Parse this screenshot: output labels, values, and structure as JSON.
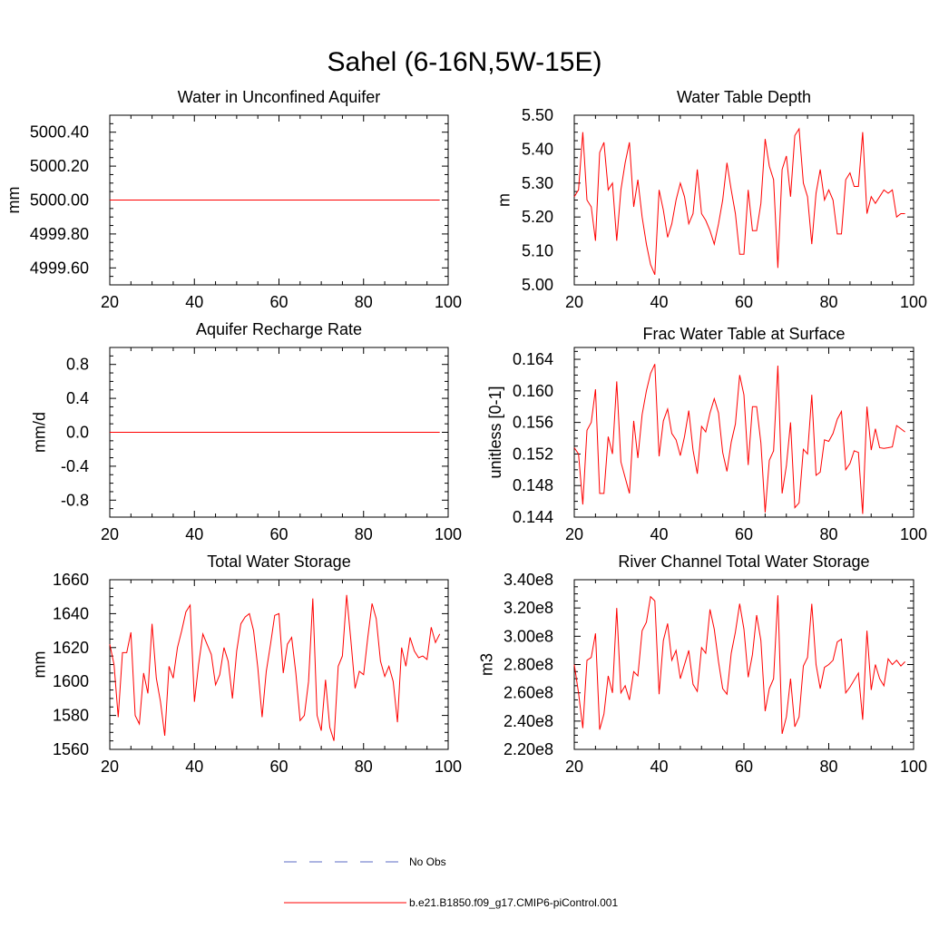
{
  "figure": {
    "title": "Sahel (6-16N,5W-15E)"
  },
  "colors": {
    "model_line": "#ff0000",
    "obs_line": "#5b6bc4",
    "axis": "#000000"
  },
  "legend": {
    "obs_label": "No Obs",
    "model_label": "b.e21.B1850.f09_g17.CMIP6-piControl.001"
  },
  "chart_data": [
    {
      "type": "line",
      "title": "Water in Unconfined Aquifer",
      "ylabel": "mm",
      "xlabel": "",
      "xlim": [
        20,
        100
      ],
      "ylim": [
        4999.5,
        5000.5
      ],
      "xticks": [
        20,
        40,
        60,
        80,
        100
      ],
      "yticks": [
        4999.6,
        4999.8,
        5000.0,
        5000.2,
        5000.4
      ],
      "ytick_labels": [
        "4999.60",
        "4999.80",
        "5000.00",
        "5000.20",
        "5000.40"
      ],
      "series": [
        {
          "name": "b.e21.B1850.f09_g17.CMIP6-piControl.001",
          "x_start": 20,
          "x_step": 1,
          "values": [
            5000,
            5000,
            5000,
            5000,
            5000,
            5000,
            5000,
            5000,
            5000,
            5000,
            5000,
            5000,
            5000,
            5000,
            5000,
            5000,
            5000,
            5000,
            5000,
            5000,
            5000,
            5000,
            5000,
            5000,
            5000,
            5000,
            5000,
            5000,
            5000,
            5000,
            5000,
            5000,
            5000,
            5000,
            5000,
            5000,
            5000,
            5000,
            5000,
            5000,
            5000,
            5000,
            5000,
            5000,
            5000,
            5000,
            5000,
            5000,
            5000,
            5000,
            5000,
            5000,
            5000,
            5000,
            5000,
            5000,
            5000,
            5000,
            5000,
            5000,
            5000,
            5000,
            5000,
            5000,
            5000,
            5000,
            5000,
            5000,
            5000,
            5000,
            5000,
            5000,
            5000,
            5000,
            5000,
            5000,
            5000,
            5000,
            5000
          ]
        }
      ]
    },
    {
      "type": "line",
      "title": "Water Table Depth",
      "ylabel": "m",
      "xlabel": "",
      "xlim": [
        20,
        100
      ],
      "ylim": [
        5.0,
        5.5
      ],
      "xticks": [
        20,
        40,
        60,
        80,
        100
      ],
      "yticks": [
        5.0,
        5.1,
        5.2,
        5.3,
        5.4,
        5.5
      ],
      "ytick_labels": [
        "5.00",
        "5.10",
        "5.20",
        "5.30",
        "5.40",
        "5.50"
      ],
      "series": [
        {
          "name": "b.e21.B1850.f09_g17.CMIP6-piControl.001",
          "x_start": 20,
          "x_step": 1,
          "values": [
            5.26,
            5.28,
            5.45,
            5.25,
            5.23,
            5.13,
            5.39,
            5.42,
            5.28,
            5.3,
            5.13,
            5.28,
            5.36,
            5.42,
            5.23,
            5.31,
            5.2,
            5.12,
            5.06,
            5.03,
            5.28,
            5.22,
            5.14,
            5.18,
            5.25,
            5.3,
            5.26,
            5.18,
            5.21,
            5.34,
            5.21,
            5.19,
            5.16,
            5.12,
            5.18,
            5.25,
            5.36,
            5.28,
            5.21,
            5.09,
            5.09,
            5.28,
            5.16,
            5.16,
            5.24,
            5.43,
            5.35,
            5.31,
            5.05,
            5.34,
            5.38,
            5.26,
            5.44,
            5.46,
            5.3,
            5.26,
            5.12,
            5.27,
            5.34,
            5.25,
            5.28,
            5.25,
            5.15,
            5.15,
            5.31,
            5.33,
            5.29,
            5.29,
            5.45,
            5.21,
            5.26,
            5.24,
            5.26,
            5.28,
            5.27,
            5.28,
            5.2,
            5.21,
            5.21
          ]
        }
      ]
    },
    {
      "type": "line",
      "title": "Aquifer Recharge Rate",
      "ylabel": "mm/d",
      "xlabel": "",
      "xlim": [
        20,
        100
      ],
      "ylim": [
        -1.0,
        1.0
      ],
      "xticks": [
        20,
        40,
        60,
        80,
        100
      ],
      "yticks": [
        -0.8,
        -0.4,
        0.0,
        0.4,
        0.8
      ],
      "ytick_labels": [
        "-0.8",
        "-0.4",
        "0.0",
        "0.4",
        "0.8"
      ],
      "series": [
        {
          "name": "b.e21.B1850.f09_g17.CMIP6-piControl.001",
          "x_start": 20,
          "x_step": 1,
          "values": [
            0,
            0,
            0,
            0,
            0,
            0,
            0,
            0,
            0,
            0,
            0,
            0,
            0,
            0,
            0,
            0,
            0,
            0,
            0,
            0,
            0,
            0,
            0,
            0,
            0,
            0,
            0,
            0,
            0,
            0,
            0,
            0,
            0,
            0,
            0,
            0,
            0,
            0,
            0,
            0,
            0,
            0,
            0,
            0,
            0,
            0,
            0,
            0,
            0,
            0,
            0,
            0,
            0,
            0,
            0,
            0,
            0,
            0,
            0,
            0,
            0,
            0,
            0,
            0,
            0,
            0,
            0,
            0,
            0,
            0,
            0,
            0,
            0,
            0,
            0,
            0,
            0,
            0,
            0
          ]
        }
      ]
    },
    {
      "type": "line",
      "title": "Frac Water Table at Surface",
      "ylabel": "unitless [0-1]",
      "xlabel": "",
      "xlim": [
        20,
        100
      ],
      "ylim": [
        0.144,
        0.1655
      ],
      "xticks": [
        20,
        40,
        60,
        80,
        100
      ],
      "yticks": [
        0.144,
        0.148,
        0.152,
        0.156,
        0.16,
        0.164
      ],
      "ytick_labels": [
        "0.144",
        "0.148",
        "0.152",
        "0.156",
        "0.160",
        "0.164"
      ],
      "series": [
        {
          "name": "b.e21.B1850.f09_g17.CMIP6-piControl.001",
          "x_start": 20,
          "x_step": 1,
          "values": [
            0.1528,
            0.152,
            0.1456,
            0.155,
            0.156,
            0.1602,
            0.147,
            0.147,
            0.1542,
            0.152,
            0.1612,
            0.151,
            0.149,
            0.147,
            0.1562,
            0.1515,
            0.157,
            0.16,
            0.1622,
            0.1634,
            0.1517,
            0.1562,
            0.1577,
            0.1546,
            0.1538,
            0.1518,
            0.1542,
            0.1575,
            0.1525,
            0.1495,
            0.1555,
            0.1548,
            0.1572,
            0.159,
            0.1572,
            0.1522,
            0.1498,
            0.1535,
            0.1558,
            0.162,
            0.1595,
            0.1506,
            0.158,
            0.158,
            0.1534,
            0.1446,
            0.1512,
            0.1524,
            0.1632,
            0.147,
            0.1505,
            0.156,
            0.1452,
            0.1458,
            0.1526,
            0.152,
            0.1595,
            0.1493,
            0.1497,
            0.1538,
            0.1536,
            0.1546,
            0.1564,
            0.1574,
            0.15,
            0.1508,
            0.1524,
            0.1522,
            0.1444,
            0.158,
            0.1525,
            0.1552,
            0.1528,
            0.1527,
            0.1528,
            0.1529,
            0.1556,
            0.1552,
            0.1548
          ]
        }
      ]
    },
    {
      "type": "line",
      "title": "Total Water Storage",
      "ylabel": "mm",
      "xlabel": "",
      "xlim": [
        20,
        100
      ],
      "ylim": [
        1560,
        1660
      ],
      "xticks": [
        20,
        40,
        60,
        80,
        100
      ],
      "yticks": [
        1560,
        1580,
        1600,
        1620,
        1640,
        1660
      ],
      "ytick_labels": [
        "1560",
        "1580",
        "1600",
        "1620",
        "1640",
        "1660"
      ],
      "series": [
        {
          "name": "b.e21.B1850.f09_g17.CMIP6-piControl.001",
          "x_start": 20,
          "x_step": 1,
          "values": [
            1622,
            1610,
            1579,
            1617,
            1617,
            1629,
            1580,
            1575,
            1605,
            1593,
            1634,
            1602,
            1588,
            1568,
            1609,
            1602,
            1620,
            1630,
            1641,
            1645,
            1588,
            1610,
            1628,
            1622,
            1616,
            1598,
            1604,
            1620,
            1612,
            1590,
            1618,
            1634,
            1638,
            1640,
            1630,
            1608,
            1579,
            1606,
            1622,
            1639,
            1640,
            1605,
            1622,
            1626,
            1605,
            1577,
            1580,
            1600,
            1649,
            1580,
            1571,
            1601,
            1573,
            1565,
            1609,
            1615,
            1651,
            1624,
            1596,
            1606,
            1604,
            1626,
            1646,
            1637,
            1612,
            1603,
            1609,
            1600,
            1576,
            1620,
            1609,
            1626,
            1618,
            1614,
            1615,
            1613,
            1632,
            1623,
            1628
          ]
        }
      ]
    },
    {
      "type": "line",
      "title": "River Channel Total Water Storage",
      "ylabel": "m3",
      "xlabel": "",
      "xlim": [
        20,
        100
      ],
      "ylim": [
        220000000.0,
        340000000.0
      ],
      "xticks": [
        20,
        40,
        60,
        80,
        100
      ],
      "yticks": [
        220000000.0,
        240000000.0,
        260000000.0,
        280000000.0,
        300000000.0,
        320000000.0,
        340000000.0
      ],
      "ytick_labels": [
        "2.20e8",
        "2.40e8",
        "2.60e8",
        "2.80e8",
        "3.00e8",
        "3.20e8",
        "3.40e8"
      ],
      "series": [
        {
          "name": "b.e21.B1850.f09_g17.CMIP6-piControl.001",
          "x_start": 20,
          "x_step": 1,
          "values": [
            280000000.0,
            260000000.0,
            235000000.0,
            283000000.0,
            285000000.0,
            302000000.0,
            234000000.0,
            245000000.0,
            272000000.0,
            260000000.0,
            320000000.0,
            260000000.0,
            265000000.0,
            255000000.0,
            275000000.0,
            272000000.0,
            304000000.0,
            310000000.0,
            328000000.0,
            325000000.0,
            259000000.0,
            297000000.0,
            309000000.0,
            283000000.0,
            290000000.0,
            270000000.0,
            280000000.0,
            290000000.0,
            266000000.0,
            261000000.0,
            292000000.0,
            288000000.0,
            319000000.0,
            305000000.0,
            282000000.0,
            263000000.0,
            259000000.0,
            288000000.0,
            303000000.0,
            323000000.0,
            305000000.0,
            271000000.0,
            287000000.0,
            315000000.0,
            297000000.0,
            247000000.0,
            263000000.0,
            270000000.0,
            329000000.0,
            231000000.0,
            243000000.0,
            270000000.0,
            236000000.0,
            243000000.0,
            279000000.0,
            285000000.0,
            323000000.0,
            280000000.0,
            263000000.0,
            278000000.0,
            280000000.0,
            283000000.0,
            296000000.0,
            298000000.0,
            260000000.0,
            264000000.0,
            269000000.0,
            274000000.0,
            241000000.0,
            304000000.0,
            262000000.0,
            280000000.0,
            270000000.0,
            265000000.0,
            284000000.0,
            280000000.0,
            283000000.0,
            279000000.0,
            282000000.0
          ]
        }
      ]
    }
  ]
}
